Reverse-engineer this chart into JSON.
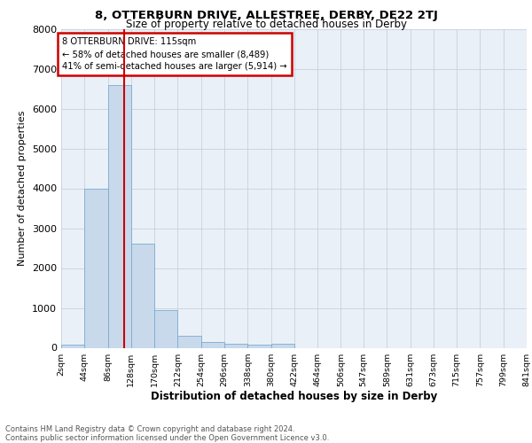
{
  "title1": "8, OTTERBURN DRIVE, ALLESTREE, DERBY, DE22 2TJ",
  "title2": "Size of property relative to detached houses in Derby",
  "xlabel": "Distribution of detached houses by size in Derby",
  "ylabel": "Number of detached properties",
  "annotation_line1": "8 OTTERBURN DRIVE: 115sqm",
  "annotation_line2": "← 58% of detached houses are smaller (8,489)",
  "annotation_line3": "41% of semi-detached houses are larger (5,914) →",
  "property_size": 115,
  "red_line_x": 115,
  "bin_edges": [
    2,
    44,
    86,
    128,
    170,
    212,
    254,
    296,
    338,
    380,
    422,
    464,
    506,
    547,
    589,
    631,
    673,
    715,
    757,
    799,
    841
  ],
  "bin_counts": [
    75,
    3980,
    6580,
    2620,
    950,
    310,
    140,
    100,
    75,
    100,
    0,
    0,
    0,
    0,
    0,
    0,
    0,
    0,
    0,
    0
  ],
  "bar_color": "#c8d9ec",
  "bar_edge_color": "#7aabcc",
  "red_line_color": "#cc0000",
  "grid_color": "#c8d0dc",
  "background_color": "#eaf0f8",
  "ylim": [
    0,
    8000
  ],
  "yticks": [
    0,
    1000,
    2000,
    3000,
    4000,
    5000,
    6000,
    7000,
    8000
  ],
  "footer_text": "Contains HM Land Registry data © Crown copyright and database right 2024.\nContains public sector information licensed under the Open Government Licence v3.0.",
  "tick_labels": [
    "2sqm",
    "44sqm",
    "86sqm",
    "128sqm",
    "170sqm",
    "212sqm",
    "254sqm",
    "296sqm",
    "338sqm",
    "380sqm",
    "422sqm",
    "464sqm",
    "506sqm",
    "547sqm",
    "589sqm",
    "631sqm",
    "673sqm",
    "715sqm",
    "757sqm",
    "799sqm",
    "841sqm"
  ]
}
